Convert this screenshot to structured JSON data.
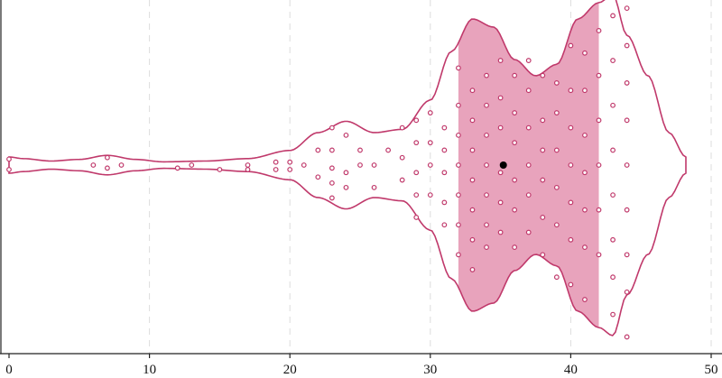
{
  "chart_data": {
    "type": "violin",
    "title": "",
    "xlabel": "",
    "ylabel": "",
    "xlim": [
      0,
      50
    ],
    "x_ticks": [
      "0",
      "10",
      "20",
      "30",
      "40",
      "50"
    ],
    "grid": "vertical dashed lines at x ticks",
    "colors": {
      "accent": "#c0396b",
      "fill": "#e8a3bc",
      "median": "#000000",
      "grid": "#dddddd",
      "axis": "#222222"
    },
    "violin_profile": [
      [
        0,
        0.05
      ],
      [
        1,
        0.04
      ],
      [
        3,
        0.025
      ],
      [
        5,
        0.035
      ],
      [
        7,
        0.06
      ],
      [
        9,
        0.035
      ],
      [
        11,
        0.02
      ],
      [
        14,
        0.025
      ],
      [
        17,
        0.04
      ],
      [
        20,
        0.09
      ],
      [
        22,
        0.2
      ],
      [
        24,
        0.27
      ],
      [
        26,
        0.2
      ],
      [
        28,
        0.22
      ],
      [
        30,
        0.4
      ],
      [
        31.5,
        0.7
      ],
      [
        33,
        0.9
      ],
      [
        34.5,
        0.85
      ],
      [
        36,
        0.65
      ],
      [
        37.5,
        0.55
      ],
      [
        39,
        0.62
      ],
      [
        40.5,
        0.9
      ],
      [
        42,
        1.0
      ],
      [
        43,
        1.05
      ],
      [
        44,
        0.8
      ],
      [
        45.5,
        0.55
      ],
      [
        47,
        0.2
      ],
      [
        48.2,
        0.05
      ]
    ],
    "quartiles": {
      "q1": 32,
      "median": 35.2,
      "q3": 42
    },
    "points": [
      [
        0,
        -0.04
      ],
      [
        0,
        0.03
      ],
      [
        6,
        0.0
      ],
      [
        7,
        -0.05
      ],
      [
        7,
        0.02
      ],
      [
        8,
        0.0
      ],
      [
        12,
        0.02
      ],
      [
        13,
        0.0
      ],
      [
        15,
        0.03
      ],
      [
        17,
        0.0
      ],
      [
        17,
        0.03
      ],
      [
        19,
        -0.02
      ],
      [
        19,
        0.03
      ],
      [
        20,
        -0.02
      ],
      [
        20,
        0.03
      ],
      [
        21,
        0.0
      ],
      [
        22,
        -0.1
      ],
      [
        22,
        0.08
      ],
      [
        23,
        -0.25
      ],
      [
        23,
        -0.1
      ],
      [
        23,
        0.02
      ],
      [
        23,
        0.12
      ],
      [
        23,
        0.22
      ],
      [
        24,
        -0.2
      ],
      [
        24,
        0.05
      ],
      [
        24,
        0.15
      ],
      [
        25,
        -0.1
      ],
      [
        25,
        0.0
      ],
      [
        26,
        0.0
      ],
      [
        26,
        0.15
      ],
      [
        27,
        -0.1
      ],
      [
        28,
        -0.25
      ],
      [
        28,
        -0.05
      ],
      [
        28,
        0.1
      ],
      [
        29,
        -0.3
      ],
      [
        29,
        -0.15
      ],
      [
        29,
        0.05
      ],
      [
        29,
        0.2
      ],
      [
        29,
        0.35
      ],
      [
        30,
        -0.35
      ],
      [
        30,
        -0.15
      ],
      [
        30,
        0.0
      ],
      [
        30,
        0.2
      ],
      [
        31,
        -0.25
      ],
      [
        31,
        -0.1
      ],
      [
        31,
        0.05
      ],
      [
        31,
        0.25
      ],
      [
        31,
        0.4
      ],
      [
        32,
        -0.65
      ],
      [
        32,
        -0.4
      ],
      [
        32,
        -0.2
      ],
      [
        32,
        0.0
      ],
      [
        32,
        0.2
      ],
      [
        32,
        0.4
      ],
      [
        32,
        0.6
      ],
      [
        33,
        -0.5
      ],
      [
        33,
        -0.3
      ],
      [
        33,
        -0.1
      ],
      [
        33,
        0.1
      ],
      [
        33,
        0.3
      ],
      [
        33,
        0.5
      ],
      [
        33,
        0.7
      ],
      [
        34,
        -0.6
      ],
      [
        34,
        -0.4
      ],
      [
        34,
        -0.2
      ],
      [
        34,
        0.0
      ],
      [
        34,
        0.2
      ],
      [
        34,
        0.4
      ],
      [
        34,
        0.55
      ],
      [
        35,
        -0.7
      ],
      [
        35,
        -0.45
      ],
      [
        35,
        -0.25
      ],
      [
        35,
        0.05
      ],
      [
        35,
        0.25
      ],
      [
        35,
        0.45
      ],
      [
        36,
        -0.6
      ],
      [
        36,
        -0.35
      ],
      [
        36,
        -0.15
      ],
      [
        36,
        0.1
      ],
      [
        36,
        0.3
      ],
      [
        36,
        0.55
      ],
      [
        37,
        -0.7
      ],
      [
        37,
        -0.5
      ],
      [
        37,
        -0.25
      ],
      [
        37,
        0.0
      ],
      [
        37,
        0.2
      ],
      [
        37,
        0.45
      ],
      [
        38,
        -0.6
      ],
      [
        38,
        -0.3
      ],
      [
        38,
        -0.1
      ],
      [
        38,
        0.1
      ],
      [
        38,
        0.35
      ],
      [
        38,
        0.6
      ],
      [
        39,
        -0.55
      ],
      [
        39,
        -0.35
      ],
      [
        39,
        -0.1
      ],
      [
        39,
        0.15
      ],
      [
        39,
        0.4
      ],
      [
        39,
        0.75
      ],
      [
        40,
        -0.8
      ],
      [
        40,
        -0.5
      ],
      [
        40,
        -0.25
      ],
      [
        40,
        0.0
      ],
      [
        40,
        0.25
      ],
      [
        40,
        0.5
      ],
      [
        40,
        0.8
      ],
      [
        41,
        -0.75
      ],
      [
        41,
        -0.5
      ],
      [
        41,
        -0.2
      ],
      [
        41,
        0.05
      ],
      [
        41,
        0.3
      ],
      [
        41,
        0.55
      ],
      [
        41,
        0.9
      ],
      [
        42,
        -0.9
      ],
      [
        42,
        -0.6
      ],
      [
        42,
        -0.3
      ],
      [
        42,
        0.0
      ],
      [
        42,
        0.3
      ],
      [
        42,
        0.6
      ],
      [
        43,
        -1.0
      ],
      [
        43,
        -0.7
      ],
      [
        43,
        -0.4
      ],
      [
        43,
        -0.1
      ],
      [
        43,
        0.2
      ],
      [
        43,
        0.5
      ],
      [
        43,
        0.75
      ],
      [
        43,
        1.0
      ],
      [
        44,
        -1.05
      ],
      [
        44,
        -0.8
      ],
      [
        44,
        -0.55
      ],
      [
        44,
        -0.3
      ],
      [
        44,
        0.0
      ],
      [
        44,
        0.3
      ],
      [
        44,
        0.6
      ],
      [
        44,
        0.85
      ],
      [
        44,
        1.15
      ]
    ]
  }
}
